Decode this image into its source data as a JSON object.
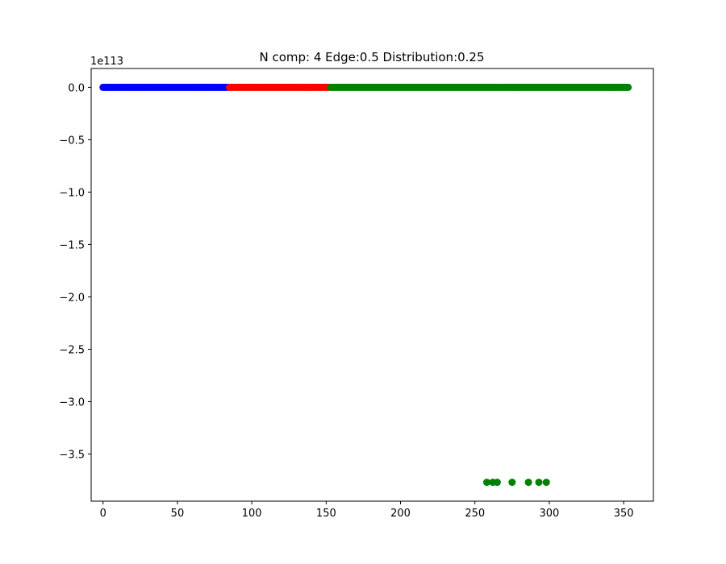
{
  "chart_data": {
    "type": "scatter",
    "title": "N comp: 4 Edge:0.5 Distribution:0.25",
    "xlabel": "",
    "ylabel": "",
    "y_offset_label": "1e113",
    "xlim": [
      -8,
      370
    ],
    "ylim": [
      -3.95,
      0.18
    ],
    "x_ticks": [
      0,
      50,
      100,
      150,
      200,
      250,
      300,
      350
    ],
    "x_tick_labels": [
      "0",
      "50",
      "100",
      "150",
      "200",
      "250",
      "300",
      "350"
    ],
    "y_ticks": [
      0.0,
      -0.5,
      -1.0,
      -1.5,
      -2.0,
      -2.5,
      -3.0,
      -3.5
    ],
    "y_tick_labels": [
      "0.0",
      "−0.5",
      "−1.0",
      "−1.5",
      "−2.0",
      "−2.5",
      "−3.0",
      "−3.5"
    ],
    "grid": false,
    "legend": "none",
    "series": [
      {
        "color": "#0000ff",
        "x_range": [
          0,
          84
        ],
        "y": 0.0
      },
      {
        "color": "#ff0000",
        "x_range": [
          85,
          152
        ],
        "y": 0.0
      },
      {
        "color": "#008000",
        "x_range": [
          153,
          353
        ],
        "y": 0.0,
        "outliers": {
          "x": [
            258,
            262,
            265,
            275,
            286,
            293,
            298
          ],
          "y": -3.77
        }
      }
    ]
  }
}
